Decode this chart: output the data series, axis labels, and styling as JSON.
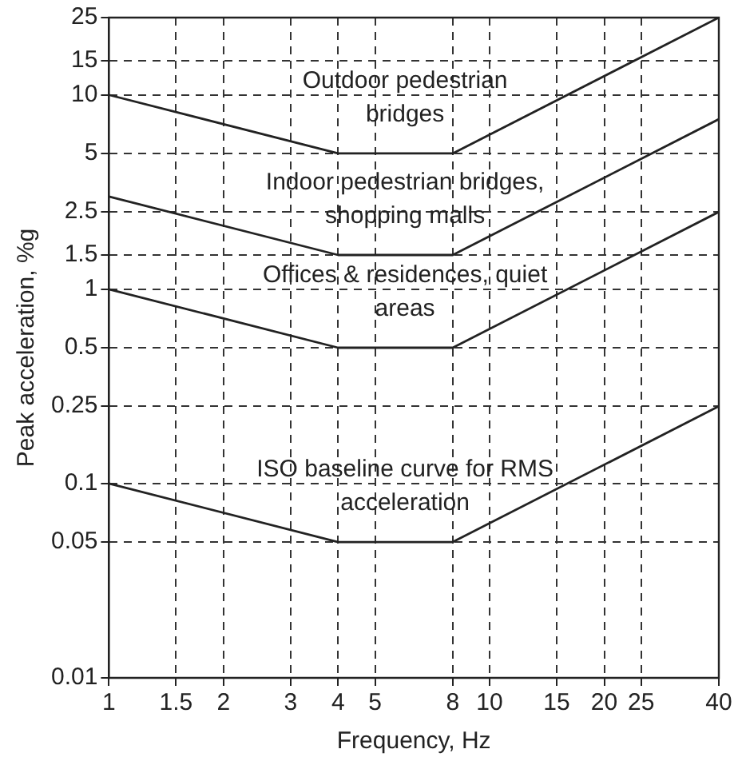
{
  "chart_data": {
    "type": "line",
    "xlabel": "Frequency, Hz",
    "ylabel": "Peak acceleration, %g",
    "log": "xy",
    "grid": true,
    "legend": false,
    "marker": "none",
    "line_style": "solid",
    "xlim": [
      1,
      40
    ],
    "xticks": [
      1,
      1.5,
      2,
      3,
      4,
      5,
      8,
      10,
      15,
      20,
      25,
      40
    ],
    "ylim": [
      0.01,
      25
    ],
    "yticks": [
      0.01,
      0.05,
      0.1,
      0.25,
      0.5,
      1,
      1.5,
      2.5,
      5,
      10,
      15,
      25
    ],
    "x": [
      1,
      4,
      8,
      40
    ],
    "series": [
      {
        "name": "Outdoor pedestrian bridges",
        "color": "#222222",
        "values": [
          10,
          5,
          5,
          25
        ]
      },
      {
        "name": "Indoor pedestrian bridges, shopping malls",
        "color": "#222222",
        "values": [
          3,
          1.5,
          1.5,
          7.5
        ]
      },
      {
        "name": "Offices & residences, quiet areas",
        "color": "#222222",
        "values": [
          1,
          0.5,
          0.5,
          2.5
        ]
      },
      {
        "name": "ISO baseline curve for RMS acceleration",
        "color": "#222222",
        "values": [
          0.1,
          0.05,
          0.05,
          0.25
        ]
      }
    ]
  }
}
